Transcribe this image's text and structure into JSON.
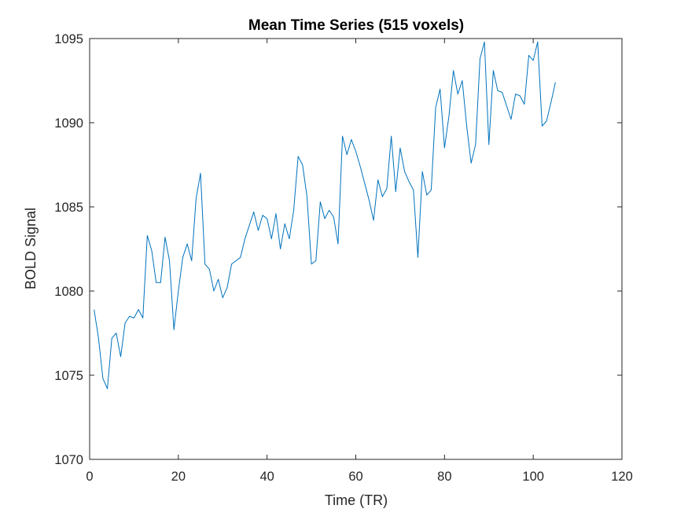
{
  "chart_data": {
    "type": "line",
    "title": "Mean Time Series (515 voxels)",
    "xlabel": "Time (TR)",
    "ylabel": "BOLD Signal",
    "xlim": [
      0,
      120
    ],
    "ylim": [
      1070,
      1095
    ],
    "xticks": [
      0,
      20,
      40,
      60,
      80,
      100,
      120
    ],
    "yticks": [
      1070,
      1075,
      1080,
      1085,
      1090,
      1095
    ],
    "xtick_labels": [
      "0",
      "20",
      "40",
      "60",
      "80",
      "100",
      "120"
    ],
    "ytick_labels": [
      "1070",
      "1075",
      "1080",
      "1085",
      "1090",
      "1095"
    ],
    "grid": false,
    "line_color": "#0072BD",
    "series": [
      {
        "x": [
          1,
          2,
          3,
          4,
          5,
          6,
          7,
          8,
          9,
          10,
          11,
          12,
          13,
          14,
          15,
          16,
          17,
          18,
          19,
          20,
          21,
          22,
          23,
          24,
          25,
          26,
          27,
          28,
          29,
          30,
          31,
          32,
          33,
          34,
          35,
          36,
          37,
          38,
          39,
          40,
          41,
          42,
          43,
          44,
          45,
          46,
          47,
          48,
          49,
          50,
          51,
          52,
          53,
          54,
          55,
          56,
          57,
          58,
          59,
          60,
          61,
          62,
          63,
          64,
          65,
          66,
          67,
          68,
          69,
          70,
          71,
          72,
          73,
          74,
          75,
          76,
          77,
          78,
          79,
          80,
          81,
          82,
          83,
          84,
          85,
          86,
          87,
          88,
          89,
          90,
          91,
          92,
          93,
          94,
          95,
          96,
          97,
          98,
          99,
          100,
          101,
          102,
          103,
          104,
          105
        ],
        "values": [
          1078.9,
          1077.2,
          1074.8,
          1074.2,
          1077.2,
          1077.5,
          1076.1,
          1078.1,
          1078.5,
          1078.4,
          1078.9,
          1078.4,
          1083.3,
          1082.4,
          1080.5,
          1080.5,
          1083.2,
          1081.8,
          1077.7,
          1080.0,
          1082.0,
          1082.8,
          1081.8,
          1085.5,
          1087.0,
          1081.6,
          1081.3,
          1080.0,
          1080.7,
          1079.6,
          1080.2,
          1081.6,
          1081.8,
          1082.0,
          1083.1,
          1083.9,
          1084.7,
          1083.6,
          1084.5,
          1084.3,
          1083.1,
          1084.6,
          1082.5,
          1084.0,
          1083.1,
          1084.8,
          1088.0,
          1087.5,
          1085.6,
          1081.6,
          1081.8,
          1085.3,
          1084.3,
          1084.8,
          1084.4,
          1082.8,
          1089.2,
          1088.1,
          1089.0,
          1088.3,
          1087.4,
          1086.4,
          1085.4,
          1084.2,
          1086.6,
          1085.6,
          1086.1,
          1089.2,
          1085.9,
          1088.5,
          1087.1,
          1086.5,
          1086.0,
          1082.0,
          1087.1,
          1085.7,
          1086.0,
          1090.9,
          1092.0,
          1088.5,
          1090.4,
          1093.1,
          1091.7,
          1092.5,
          1089.8,
          1087.6,
          1088.7,
          1093.8,
          1094.8,
          1088.7,
          1093.1,
          1091.9,
          1091.8,
          1091.0,
          1090.2,
          1091.7,
          1091.6,
          1091.1,
          1094.0,
          1093.7,
          1094.8,
          1089.8,
          1090.1,
          1091.2,
          1092.4
        ]
      }
    ]
  }
}
